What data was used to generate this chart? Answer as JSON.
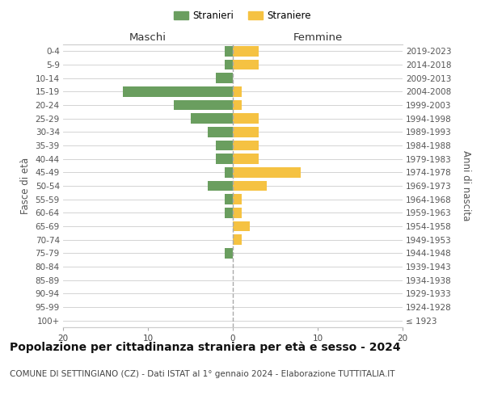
{
  "age_groups": [
    "100+",
    "95-99",
    "90-94",
    "85-89",
    "80-84",
    "75-79",
    "70-74",
    "65-69",
    "60-64",
    "55-59",
    "50-54",
    "45-49",
    "40-44",
    "35-39",
    "30-34",
    "25-29",
    "20-24",
    "15-19",
    "10-14",
    "5-9",
    "0-4"
  ],
  "birth_years": [
    "≤ 1923",
    "1924-1928",
    "1929-1933",
    "1934-1938",
    "1939-1943",
    "1944-1948",
    "1949-1953",
    "1954-1958",
    "1959-1963",
    "1964-1968",
    "1969-1973",
    "1974-1978",
    "1979-1983",
    "1984-1988",
    "1989-1993",
    "1994-1998",
    "1999-2003",
    "2004-2008",
    "2009-2013",
    "2014-2018",
    "2019-2023"
  ],
  "males": [
    0,
    0,
    0,
    0,
    0,
    1,
    0,
    0,
    1,
    1,
    3,
    1,
    2,
    2,
    3,
    5,
    7,
    13,
    2,
    1,
    1
  ],
  "females": [
    0,
    0,
    0,
    0,
    0,
    0,
    1,
    2,
    1,
    1,
    4,
    8,
    3,
    3,
    3,
    3,
    1,
    1,
    0,
    3,
    3
  ],
  "male_color": "#6a9e5f",
  "female_color": "#f5c242",
  "bar_height": 0.75,
  "xlim": 20,
  "title": "Popolazione per cittadinanza straniera per età e sesso - 2024",
  "subtitle": "COMUNE DI SETTINGIANO (CZ) - Dati ISTAT al 1° gennaio 2024 - Elaborazione TUTTITALIA.IT",
  "ylabel_left": "Fasce di età",
  "ylabel_right": "Anni di nascita",
  "xlabel_left": "Maschi",
  "xlabel_right": "Femmine",
  "legend_stranieri": "Stranieri",
  "legend_straniere": "Straniere",
  "bg_color": "#ffffff",
  "grid_color": "#cccccc",
  "center_line_color": "#aaaaaa",
  "title_fontsize": 10,
  "subtitle_fontsize": 7.5,
  "axis_label_fontsize": 8.5,
  "tick_fontsize": 7.5,
  "legend_fontsize": 8.5
}
